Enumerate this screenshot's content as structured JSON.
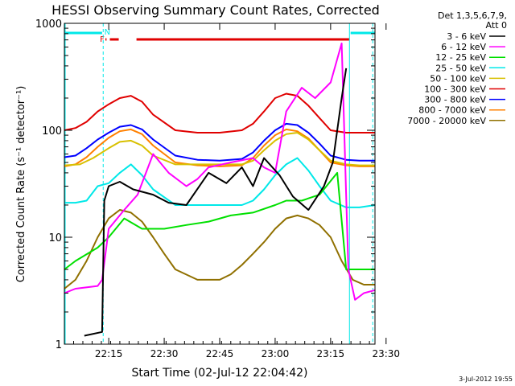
{
  "chart_data": {
    "type": "line",
    "title": "HESSI Observing Summary Count Rates, Corrected",
    "xlabel": "Start Time (02-Jul-12 22:04:42)",
    "ylabel": "Corrected Count Rate (s⁻¹ detector⁻¹)",
    "y_scale": "log",
    "ylim": [
      1,
      1000
    ],
    "xlim_minutes": [
      22.05,
      23.45
    ],
    "x_ticks": [
      "22:15",
      "22:30",
      "22:45",
      "23:00",
      "23:15",
      "23:30"
    ],
    "x_tick_values": [
      22.25,
      22.5,
      22.75,
      23.0,
      23.25,
      23.5
    ],
    "y_ticks": [
      "1",
      "10",
      "100",
      "1000"
    ],
    "y_tick_values": [
      1,
      10,
      100,
      1000
    ],
    "legend": {
      "position": "right",
      "header": [
        "Det 1,3,5,6,7,9,",
        "Att 0"
      ],
      "entries": [
        {
          "label": "3 - 6 keV",
          "color": "#000000"
        },
        {
          "label": "6 - 12 keV",
          "color": "#ff00ff"
        },
        {
          "label": "12 - 25 keV",
          "color": "#00e000"
        },
        {
          "label": "25 - 50 keV",
          "color": "#00e8e8"
        },
        {
          "label": "50 - 100 keV",
          "color": "#d8c000"
        },
        {
          "label": "100 - 300 keV",
          "color": "#e00000"
        },
        {
          "label": "300 - 800 keV",
          "color": "#0000ff"
        },
        {
          "label": "800 - 7000 keV",
          "color": "#ff8000"
        },
        {
          "label": "7000 - 20000 keV",
          "color": "#907000"
        }
      ]
    },
    "flags": {
      "night_label": "N",
      "flare_label": "F",
      "night_color": "#00e8e8",
      "flare_color": "#e00000"
    },
    "series": [
      {
        "name": "3 - 6 keV",
        "x": [
          22.14,
          22.22,
          22.23,
          22.25,
          22.3,
          22.36,
          22.45,
          22.52,
          22.6,
          22.7,
          22.78,
          22.85,
          22.9,
          22.95,
          23.02,
          23.08,
          23.15,
          23.22,
          23.26,
          23.3,
          23.32
        ],
        "y": [
          1.2,
          1.3,
          22,
          30,
          33,
          28,
          25,
          21,
          20,
          40,
          32,
          45,
          30,
          55,
          38,
          24,
          18,
          30,
          50,
          200,
          380
        ]
      },
      {
        "name": "6 - 12 keV",
        "x": [
          22.05,
          22.1,
          22.2,
          22.22,
          22.25,
          22.32,
          22.38,
          22.45,
          22.52,
          22.6,
          22.65,
          22.7,
          22.8,
          22.9,
          22.95,
          23.0,
          23.05,
          23.12,
          23.18,
          23.25,
          23.3,
          23.33,
          23.36,
          23.4,
          23.45
        ],
        "y": [
          3,
          3.3,
          3.5,
          4,
          12,
          18,
          25,
          60,
          40,
          30,
          35,
          45,
          50,
          55,
          45,
          40,
          150,
          250,
          200,
          280,
          650,
          5,
          2.6,
          3,
          3.2
        ]
      },
      {
        "name": "12 - 25 keV",
        "x": [
          22.05,
          22.1,
          22.2,
          22.25,
          22.32,
          22.4,
          22.5,
          22.6,
          22.7,
          22.8,
          22.9,
          23.0,
          23.05,
          23.12,
          23.2,
          23.28,
          23.32,
          23.36,
          23.45
        ],
        "y": [
          5,
          6,
          8,
          10,
          15,
          12,
          12,
          13,
          14,
          16,
          17,
          20,
          22,
          22,
          25,
          40,
          5,
          5,
          5
        ]
      },
      {
        "name": "25 - 50 keV",
        "x": [
          22.05,
          22.1,
          22.15,
          22.2,
          22.25,
          22.3,
          22.35,
          22.4,
          22.45,
          22.55,
          22.65,
          22.75,
          22.85,
          22.9,
          22.95,
          23.0,
          23.05,
          23.1,
          23.15,
          23.2,
          23.25,
          23.32,
          23.38,
          23.45
        ],
        "y": [
          21,
          21,
          22,
          30,
          32,
          40,
          48,
          38,
          28,
          20,
          20,
          20,
          20,
          22,
          28,
          38,
          48,
          55,
          42,
          30,
          22,
          19,
          19,
          20
        ]
      },
      {
        "name": "50 - 100 keV",
        "x": [
          22.05,
          22.12,
          22.18,
          22.25,
          22.3,
          22.35,
          22.4,
          22.45,
          22.55,
          22.65,
          22.75,
          22.85,
          22.9,
          22.95,
          23.0,
          23.05,
          23.1,
          23.15,
          23.2,
          23.25,
          23.32,
          23.38,
          23.45
        ],
        "y": [
          47,
          48,
          55,
          68,
          78,
          80,
          72,
          58,
          48,
          48,
          48,
          48,
          52,
          65,
          80,
          92,
          95,
          82,
          65,
          52,
          48,
          47,
          47
        ]
      },
      {
        "name": "100 - 300 keV",
        "x": [
          22.05,
          22.1,
          22.15,
          22.2,
          22.25,
          22.3,
          22.35,
          22.4,
          22.45,
          22.55,
          22.65,
          22.75,
          22.85,
          22.9,
          22.95,
          23.0,
          23.05,
          23.1,
          23.15,
          23.2,
          23.25,
          23.32,
          23.38,
          23.45
        ],
        "y": [
          100,
          105,
          120,
          150,
          175,
          200,
          210,
          185,
          140,
          100,
          95,
          95,
          100,
          115,
          150,
          200,
          220,
          210,
          170,
          130,
          100,
          95,
          95,
          95
        ]
      },
      {
        "name": "300 - 800 keV",
        "x": [
          22.05,
          22.1,
          22.15,
          22.2,
          22.25,
          22.3,
          22.35,
          22.4,
          22.45,
          22.55,
          22.65,
          22.75,
          22.85,
          22.9,
          22.95,
          23.0,
          23.05,
          23.1,
          23.15,
          23.2,
          23.25,
          23.32,
          23.38,
          23.45
        ],
        "y": [
          56,
          58,
          68,
          82,
          95,
          108,
          112,
          102,
          82,
          58,
          53,
          52,
          54,
          62,
          80,
          100,
          115,
          112,
          95,
          75,
          58,
          53,
          52,
          52
        ]
      },
      {
        "name": "800 - 7000 keV",
        "x": [
          22.05,
          22.1,
          22.15,
          22.2,
          22.25,
          22.3,
          22.35,
          22.4,
          22.45,
          22.55,
          22.65,
          22.75,
          22.85,
          22.9,
          22.95,
          23.0,
          23.05,
          23.1,
          23.15,
          23.2,
          23.25,
          23.32,
          23.38,
          23.45
        ],
        "y": [
          46,
          48,
          56,
          70,
          85,
          98,
          102,
          92,
          72,
          50,
          47,
          46,
          47,
          55,
          72,
          90,
          102,
          98,
          84,
          65,
          50,
          47,
          46,
          46
        ]
      },
      {
        "name": "7000 - 20000 keV",
        "x": [
          22.05,
          22.1,
          22.15,
          22.2,
          22.25,
          22.3,
          22.35,
          22.4,
          22.45,
          22.5,
          22.55,
          22.65,
          22.75,
          22.8,
          22.85,
          22.9,
          22.95,
          23.0,
          23.05,
          23.1,
          23.15,
          23.2,
          23.25,
          23.3,
          23.35,
          23.4,
          23.45
        ],
        "y": [
          3.3,
          4,
          6,
          10,
          15,
          18,
          17,
          14,
          10,
          7,
          5,
          4,
          4,
          4.5,
          5.5,
          7,
          9,
          12,
          15,
          16,
          15,
          13,
          10,
          6,
          4,
          3.6,
          3.6
        ]
      }
    ]
  },
  "timestamp": "3-Jul-2012 19:55"
}
